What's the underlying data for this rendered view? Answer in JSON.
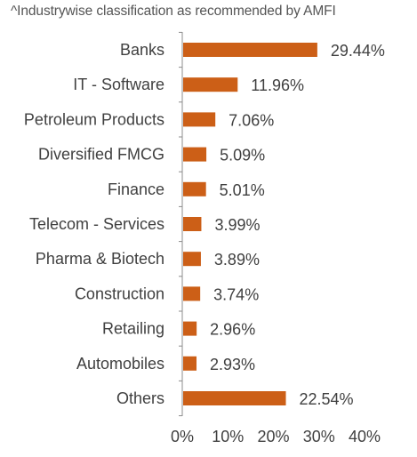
{
  "note": "^Industrywise classification as recommended by AMFI",
  "colors": {
    "bar": "#CC5F17",
    "axis": "#8c8c8c",
    "text": "#404040"
  },
  "chart_data": {
    "type": "bar",
    "orientation": "horizontal",
    "title": "",
    "xlabel": "",
    "ylabel": "",
    "categories": [
      "Banks",
      "IT - Software",
      "Petroleum Products",
      "Diversified FMCG",
      "Finance",
      "Telecom - Services",
      "Pharma & Biotech",
      "Construction",
      "Retailing",
      "Automobiles",
      "Others"
    ],
    "values": [
      29.44,
      11.96,
      7.06,
      5.09,
      5.01,
      3.99,
      3.89,
      3.74,
      2.96,
      2.93,
      22.54
    ],
    "value_labels": [
      "29.44%",
      "11.96%",
      "7.06%",
      "5.09%",
      "5.01%",
      "3.99%",
      "3.89%",
      "3.74%",
      "2.96%",
      "2.93%",
      "22.54%"
    ],
    "xlim": [
      0,
      40
    ],
    "x_ticks": [
      0,
      10,
      20,
      30,
      40
    ],
    "x_tick_labels": [
      "0%",
      "10%",
      "20%",
      "30%",
      "40%"
    ],
    "grid": false,
    "legend": "none"
  }
}
